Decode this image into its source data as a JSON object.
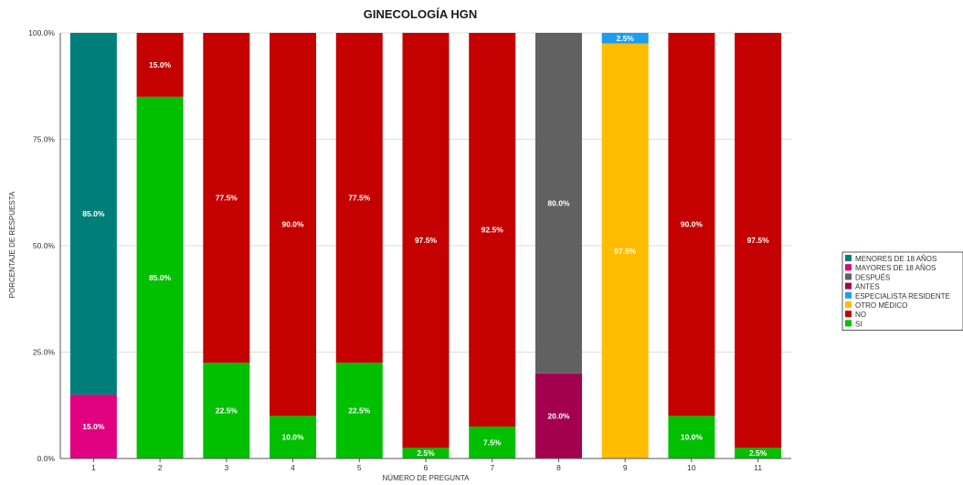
{
  "chart_data": {
    "type": "bar",
    "stacked": true,
    "title": "GINECOLOGÍA HGN",
    "xlabel": "NÚMERO DE PREGUNTA",
    "ylabel": "PORCENTAJE DE RESPUESTA",
    "ylim": [
      0,
      100
    ],
    "yticks": [
      "0.0%",
      "25.0%",
      "50.0%",
      "75.0%",
      "100.0%"
    ],
    "categories": [
      "1",
      "2",
      "3",
      "4",
      "5",
      "6",
      "7",
      "8",
      "9",
      "10",
      "11"
    ],
    "grid": true,
    "legend_position": "right",
    "series": [
      {
        "name": "MENORES DE 18 AÑOS",
        "color": "#007f7a",
        "values": [
          85.0,
          null,
          null,
          null,
          null,
          null,
          null,
          null,
          null,
          null,
          null
        ],
        "labels": [
          "85.0%",
          null,
          null,
          null,
          null,
          null,
          null,
          null,
          null,
          null,
          null
        ]
      },
      {
        "name": "MAYORES DE 18 AÑOS",
        "color": "#e1007f",
        "values": [
          15.0,
          null,
          null,
          null,
          null,
          null,
          null,
          null,
          null,
          null,
          null
        ],
        "labels": [
          "15.0%",
          null,
          null,
          null,
          null,
          null,
          null,
          null,
          null,
          null,
          null
        ]
      },
      {
        "name": "DESPUÉS",
        "color": "#616161",
        "values": [
          null,
          null,
          null,
          null,
          null,
          null,
          null,
          80.0,
          null,
          null,
          null
        ],
        "labels": [
          null,
          null,
          null,
          null,
          null,
          null,
          null,
          "80.0%",
          null,
          null,
          null
        ]
      },
      {
        "name": "ANTES",
        "color": "#a3004f",
        "values": [
          null,
          null,
          null,
          null,
          null,
          null,
          null,
          20.0,
          null,
          null,
          null
        ],
        "labels": [
          null,
          null,
          null,
          null,
          null,
          null,
          null,
          "20.0%",
          null,
          null,
          null
        ]
      },
      {
        "name": "ESPECIALISTA RESIDENTE",
        "color": "#1e9cf0",
        "values": [
          null,
          null,
          null,
          null,
          null,
          null,
          null,
          null,
          2.5,
          null,
          null
        ],
        "labels": [
          null,
          null,
          null,
          null,
          null,
          null,
          null,
          null,
          "2.5%",
          null,
          null
        ]
      },
      {
        "name": "OTRO MÉDICO",
        "color": "#ffbc00",
        "values": [
          null,
          null,
          null,
          null,
          null,
          null,
          null,
          null,
          97.5,
          null,
          null
        ],
        "labels": [
          null,
          null,
          null,
          null,
          null,
          null,
          null,
          null,
          "97.5%",
          null,
          null
        ]
      },
      {
        "name": "NO",
        "color": "#c40000",
        "values": [
          null,
          15.0,
          77.5,
          90.0,
          77.5,
          97.5,
          92.5,
          null,
          null,
          90.0,
          97.5
        ],
        "labels": [
          null,
          "15.0%",
          "77.5%",
          "90.0%",
          "77.5%",
          "97.5%",
          "92.5%",
          null,
          null,
          "90.0%",
          "97.5%"
        ]
      },
      {
        "name": "SI",
        "color": "#00c000",
        "values": [
          null,
          85.0,
          22.5,
          10.0,
          22.5,
          2.5,
          7.5,
          null,
          null,
          10.0,
          2.5
        ],
        "labels": [
          null,
          "85.0%",
          "22.5%",
          "10.0%",
          "22.5%",
          "2.5%",
          "7.5%",
          null,
          null,
          "10.0%",
          "2.5%"
        ]
      }
    ],
    "stack_order_bottom_to_top": [
      "SI",
      "NO",
      "OTRO MÉDICO",
      "ESPECIALISTA RESIDENTE",
      "ANTES",
      "DESPUÉS",
      "MAYORES DE 18 AÑOS",
      "MENORES DE 18 AÑOS"
    ]
  }
}
